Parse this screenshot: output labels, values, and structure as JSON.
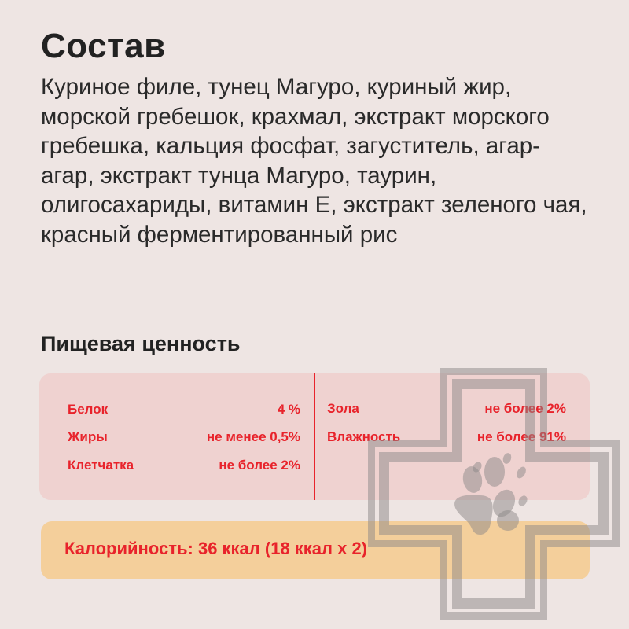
{
  "composition": {
    "title": "Состав",
    "text": "Куриное филе, тунец Магуро, куриный жир, морской гребешок, крахмал, экстракт морского гребешка, кальция фосфат, загуститель, агар-агар, экстракт тунца Магуро, таурин, олигосахариды, витамин Е, экстракт зеленого чая, красный ферментированный рис"
  },
  "nutrition": {
    "title": "Пищевая ценность",
    "left": [
      {
        "label": "Белок",
        "value": "4 %"
      },
      {
        "label": "Жиры",
        "value": "не менее 0,5%"
      },
      {
        "label": "Клетчатка",
        "value": "не более 2%"
      }
    ],
    "right": [
      {
        "label": "Зола",
        "value": "не более 2%"
      },
      {
        "label": "Влажность",
        "value": "не более 91%"
      }
    ]
  },
  "calories": "Калорийность: 36 ккал (18 ккал х 2)",
  "colors": {
    "accent": "#e8232b",
    "panel": "#efd2d0",
    "calorie_panel": "#f4cf9b",
    "background": "#eee5e3"
  },
  "watermark_icon": "medical-cross-paw-icon"
}
